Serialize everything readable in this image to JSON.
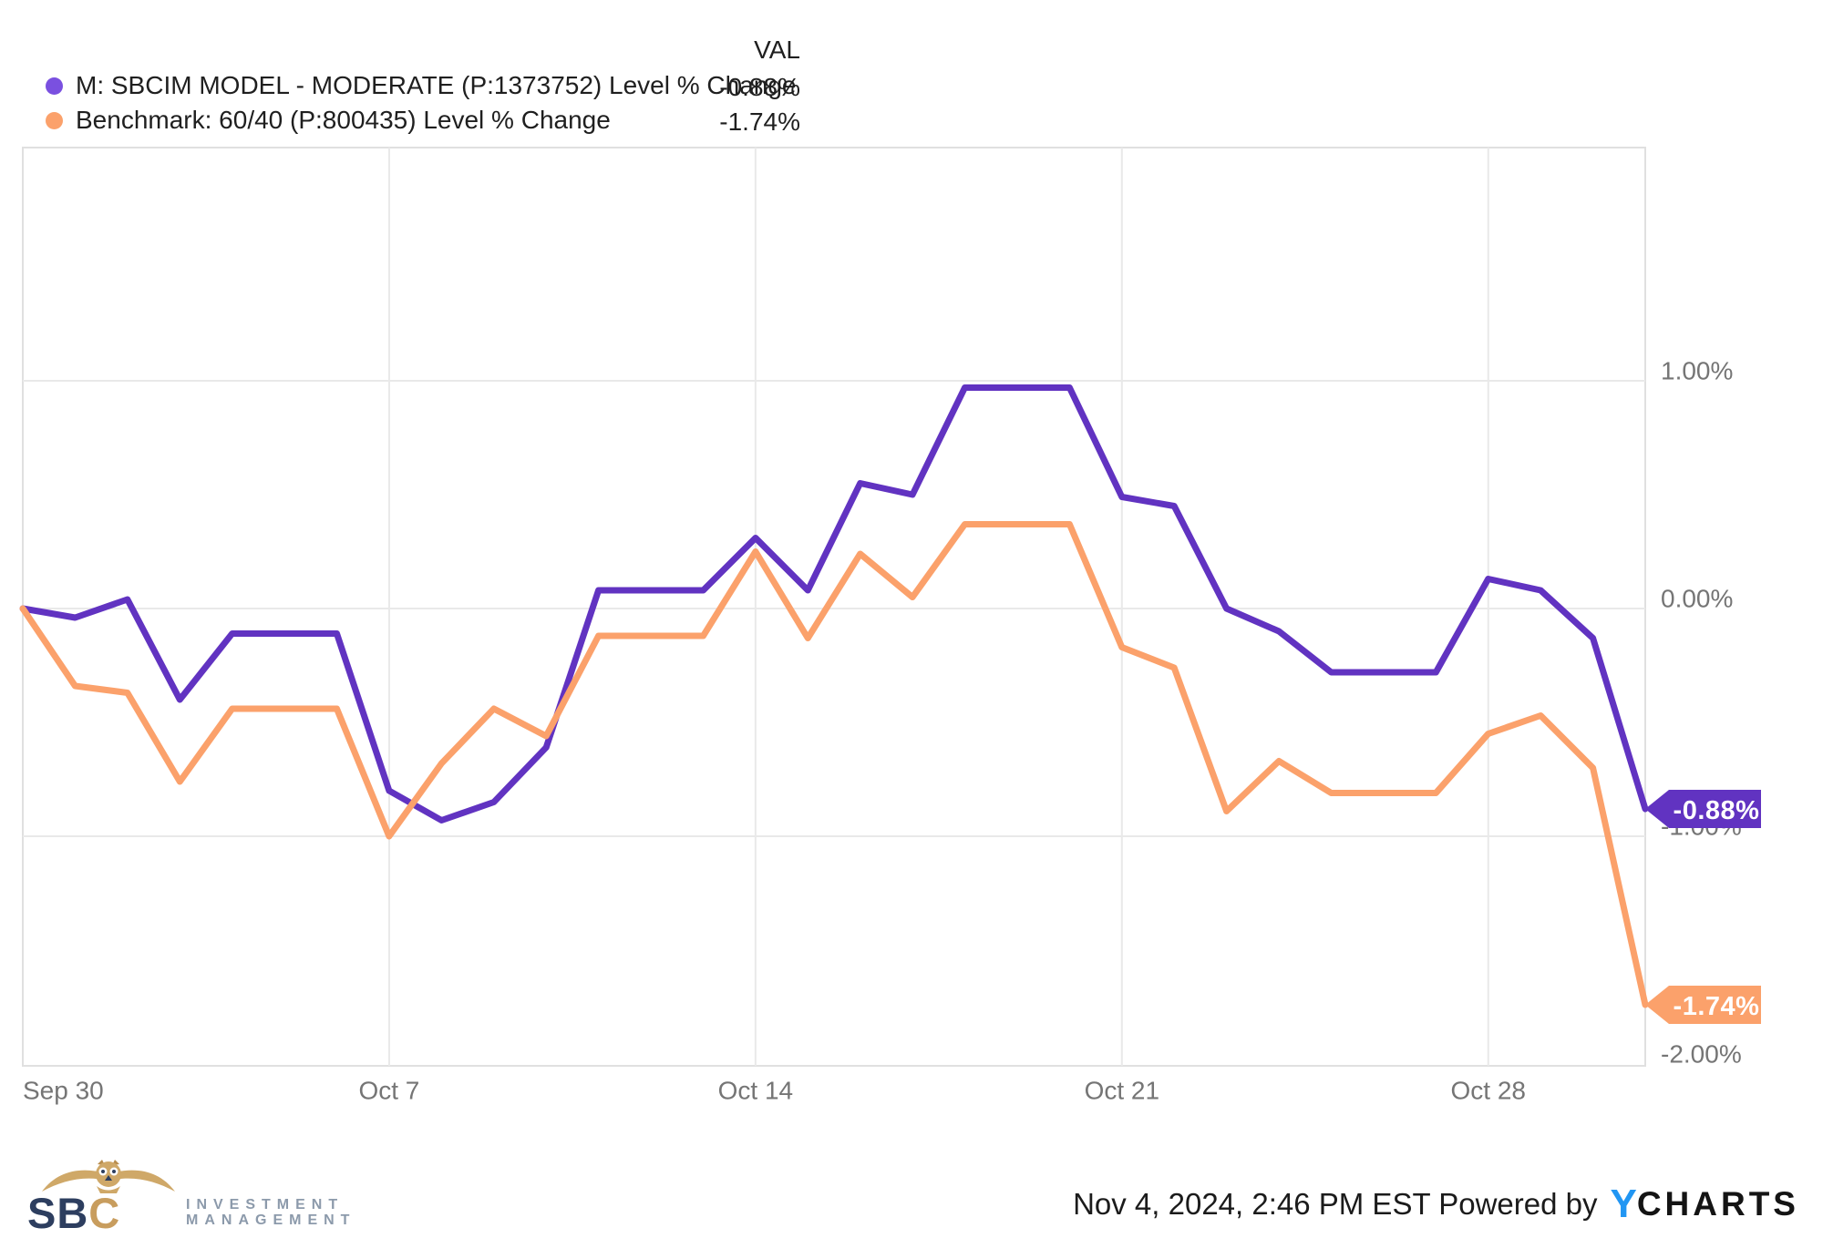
{
  "legend": {
    "val_header": "VAL",
    "series": [
      {
        "label": "M: SBCIM MODEL - MODERATE (P:1373752) Level % Change",
        "value": "-0.88%",
        "dot_color": "#7a50e0"
      },
      {
        "label": "Benchmark: 60/40 (P:800435) Level % Change",
        "value": "-1.74%",
        "dot_color": "#fba16b"
      }
    ]
  },
  "chart_data": {
    "type": "line",
    "title": "",
    "xlabel": "",
    "ylabel": "Level % Change",
    "grid": true,
    "legend_position": "top-left",
    "x": [
      "Sep 30",
      "Oct 1",
      "Oct 2",
      "Oct 3",
      "Oct 4",
      "Oct 5",
      "Oct 6",
      "Oct 7",
      "Oct 8",
      "Oct 9",
      "Oct 10",
      "Oct 11",
      "Oct 12",
      "Oct 13",
      "Oct 14",
      "Oct 15",
      "Oct 16",
      "Oct 17",
      "Oct 18",
      "Oct 19",
      "Oct 20",
      "Oct 21",
      "Oct 22",
      "Oct 23",
      "Oct 24",
      "Oct 25",
      "Oct 26",
      "Oct 27",
      "Oct 28",
      "Oct 29",
      "Oct 30",
      "Oct 31"
    ],
    "series": [
      {
        "name": "M: SBCIM MODEL - MODERATE (P:1373752) Level % Change",
        "color": "#6133c1",
        "values": [
          0.0,
          -0.04,
          0.04,
          -0.4,
          -0.11,
          -0.11,
          -0.11,
          -0.8,
          -0.93,
          -0.85,
          -0.61,
          0.08,
          0.08,
          0.08,
          0.31,
          0.08,
          0.55,
          0.5,
          0.97,
          0.97,
          0.97,
          0.49,
          0.45,
          0.0,
          -0.1,
          -0.28,
          -0.28,
          -0.28,
          0.13,
          0.08,
          -0.13,
          -0.88
        ]
      },
      {
        "name": "Benchmark: 60/40 (P:800435) Level % Change",
        "color": "#fba16b",
        "values": [
          0.0,
          -0.34,
          -0.37,
          -0.76,
          -0.44,
          -0.44,
          -0.44,
          -1.0,
          -0.68,
          -0.44,
          -0.56,
          -0.12,
          -0.12,
          -0.12,
          0.25,
          -0.13,
          0.24,
          0.05,
          0.37,
          0.37,
          0.37,
          -0.17,
          -0.26,
          -0.89,
          -0.67,
          -0.81,
          -0.81,
          -0.81,
          -0.55,
          -0.47,
          -0.7,
          -1.74
        ]
      }
    ],
    "x_axis": {
      "ticks": [
        {
          "label": "Sep 30",
          "index": 0
        },
        {
          "label": "Oct 7",
          "index": 7
        },
        {
          "label": "Oct 14",
          "index": 14
        },
        {
          "label": "Oct 21",
          "index": 21
        },
        {
          "label": "Oct 28",
          "index": 28
        }
      ]
    },
    "y_axis": {
      "unit": "percent",
      "range": [
        -2.0,
        2.0
      ],
      "ticks": [
        {
          "label": "1.00%",
          "value": 1
        },
        {
          "label": "0.00%",
          "value": 0
        },
        {
          "label": "-1.00%",
          "value": -1
        },
        {
          "label": "-2.00%",
          "value": -2
        }
      ]
    },
    "end_labels": [
      {
        "text": "-0.88%",
        "value": -0.88,
        "color": "#6133c1"
      },
      {
        "text": "-1.74%",
        "value": -1.74,
        "color": "#fba16b"
      }
    ]
  },
  "colors": {
    "model_line": "#6133c1",
    "benchmark_line": "#fba16b",
    "grid": "#e9e9e9",
    "plot_border": "#e0e0e0",
    "axis_text": "#757575",
    "ycharts_blue": "#2196f3",
    "sbc_navy": "#2d3e5f",
    "sbc_gold": "#c89d5e"
  },
  "footer": {
    "sbc_logo": {
      "sb": "SB",
      "c": "C",
      "subtext_line1": "INVESTMENT",
      "subtext_line2": "MANAGEMENT"
    },
    "timestamp": "Nov 4, 2024, 2:46 PM EST",
    "powered_by": "Powered by",
    "ycharts_logo": {
      "y": "Y",
      "charts": "CHARTS"
    }
  }
}
